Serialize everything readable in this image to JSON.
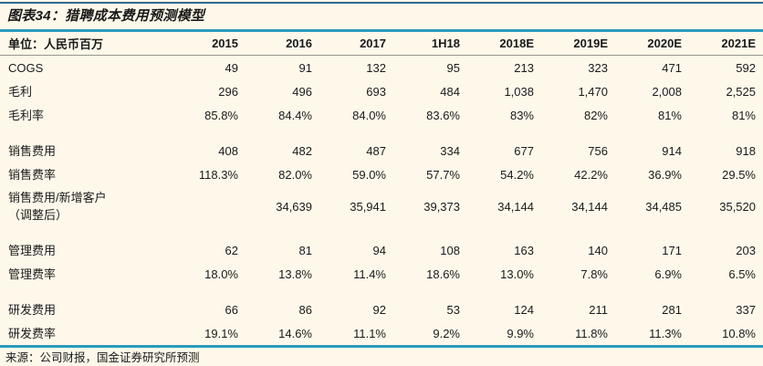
{
  "figure": {
    "title": "图表34：猎聘成本费用预测模型",
    "source": "来源：公司财报，国金证券研究所预测"
  },
  "colors": {
    "background": "#FDF8EA",
    "top_rule": "#35688F",
    "divider_teal": "#2B9BBE",
    "header_underline": "#97968E",
    "text": "#1A1A1A"
  },
  "table": {
    "unit_label": "单位：人民币百万",
    "columns": [
      "2015",
      "2016",
      "2017",
      "1H18",
      "2018E",
      "2019E",
      "2020E",
      "2021E"
    ],
    "sections": [
      {
        "rows": [
          {
            "label": "COGS",
            "values": [
              "49",
              "91",
              "132",
              "95",
              "213",
              "323",
              "471",
              "592"
            ]
          },
          {
            "label": "毛利",
            "values": [
              "296",
              "496",
              "693",
              "484",
              "1,038",
              "1,470",
              "2,008",
              "2,525"
            ]
          },
          {
            "label": "毛利率",
            "values": [
              "85.8%",
              "84.4%",
              "84.0%",
              "83.6%",
              "83%",
              "82%",
              "81%",
              "81%"
            ]
          }
        ]
      },
      {
        "rows": [
          {
            "label": "销售费用",
            "values": [
              "408",
              "482",
              "487",
              "334",
              "677",
              "756",
              "914",
              "918"
            ]
          },
          {
            "label": "销售费率",
            "values": [
              "118.3%",
              "82.0%",
              "59.0%",
              "57.7%",
              "54.2%",
              "42.2%",
              "36.9%",
              "29.5%"
            ]
          },
          {
            "label": "销售费用/新增客户",
            "label_note": "（调整后）",
            "values": [
              "",
              "34,639",
              "35,941",
              "39,373",
              "34,144",
              "34,144",
              "34,485",
              "35,520"
            ]
          }
        ]
      },
      {
        "rows": [
          {
            "label": "管理费用",
            "values": [
              "62",
              "81",
              "94",
              "108",
              "163",
              "140",
              "171",
              "203"
            ]
          },
          {
            "label": "管理费率",
            "values": [
              "18.0%",
              "13.8%",
              "11.4%",
              "18.6%",
              "13.0%",
              "7.8%",
              "6.9%",
              "6.5%"
            ]
          }
        ]
      },
      {
        "rows": [
          {
            "label": "研发费用",
            "values": [
              "66",
              "86",
              "92",
              "53",
              "124",
              "211",
              "281",
              "337"
            ]
          },
          {
            "label": "研发费率",
            "values": [
              "19.1%",
              "14.6%",
              "11.1%",
              "9.2%",
              "9.9%",
              "11.8%",
              "11.3%",
              "10.8%"
            ]
          }
        ]
      }
    ]
  }
}
